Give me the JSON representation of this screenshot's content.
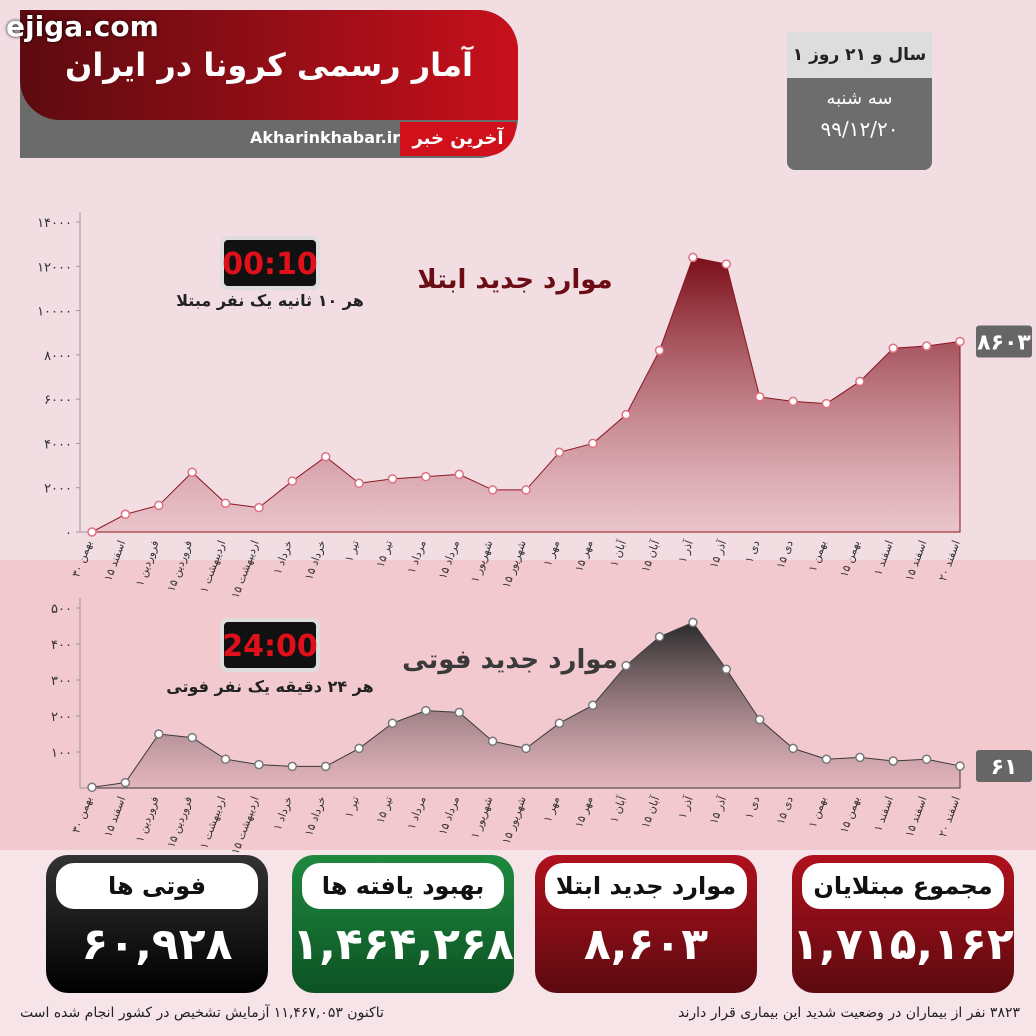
{
  "watermark": "ejiga.com",
  "header": {
    "title": "آمار رسمی کرونا در ایران",
    "site": "Akharinkhabar.ir",
    "logo": "آخرین خبر"
  },
  "date_box": {
    "duration": "۱ سال و ۲۱ روز",
    "weekday": "سه شنبه",
    "date": "۹۹/۱۲/۲۰"
  },
  "chart_data": [
    {
      "type": "area",
      "title": "موارد جدید ابتلا",
      "annotation": {
        "clock": "00:10",
        "text": "هر ۱۰ ثانیه یک نفر مبتلا"
      },
      "categories": [
        "۳۰ بهمن",
        "۱۵ اسفند",
        "۱ فروردین",
        "۱۵ فروردین",
        "۱ اردیبهشت",
        "۱۵ اردیبهشت",
        "۱ خرداد",
        "۱۵ خرداد",
        "۱ تیر",
        "۱۵ تیر",
        "۱ مرداد",
        "۱۵ مرداد",
        "۱ شهریور",
        "۱۵ شهریور",
        "۱ مهر",
        "۱۵ مهر",
        "۱ آبان",
        "۱۵ آبان",
        "۱ آذر",
        "۱۵ آذر",
        "۱ دی",
        "۱۵ دی",
        "۱ بهمن",
        "۱۵ بهمن",
        "۱ اسفند",
        "۱۵ اسفند",
        "۲۰ اسفند"
      ],
      "values": [
        0,
        800,
        1200,
        2700,
        1300,
        1100,
        2300,
        3400,
        2200,
        2400,
        2500,
        2600,
        1900,
        1900,
        3600,
        4000,
        5300,
        8200,
        12400,
        12100,
        6100,
        5900,
        5800,
        6800,
        8300,
        8400,
        8603
      ],
      "value_labels": [
        null,
        null,
        null,
        null,
        null,
        null,
        null,
        null,
        null,
        null,
        null,
        null,
        null,
        null,
        null,
        null,
        null,
        null,
        null,
        null,
        null,
        null,
        null,
        null,
        null,
        null,
        "۸۶۰۳"
      ],
      "color": "#8e1520",
      "ylim": [
        0,
        14000
      ],
      "yticks": [
        {
          "value": 0,
          "label": "۰"
        },
        {
          "value": 2000,
          "label": "۲۰۰۰"
        },
        {
          "value": 4000,
          "label": "۴۰۰۰"
        },
        {
          "value": 6000,
          "label": "۶۰۰۰"
        },
        {
          "value": 8000,
          "label": "۸۰۰۰"
        },
        {
          "value": 10000,
          "label": "۱۰۰۰۰"
        },
        {
          "value": 12000,
          "label": "۱۲۰۰۰"
        },
        {
          "value": 14000,
          "label": "۱۴۰۰۰"
        }
      ]
    },
    {
      "type": "area",
      "title": "موارد جدید فوتی",
      "annotation": {
        "clock": "24:00",
        "text": "هر ۲۴ دقیقه یک نفر فوتی"
      },
      "categories": [
        "۳۰ بهمن",
        "۱۵ اسفند",
        "۱ فروردین",
        "۱۵ فروردین",
        "۱ اردیبهشت",
        "۱۵ اردیبهشت",
        "۱ خرداد",
        "۱۵ خرداد",
        "۱ تیر",
        "۱۵ تیر",
        "۱ مرداد",
        "۱۵ مرداد",
        "۱ شهریور",
        "۱۵ شهریور",
        "۱ مهر",
        "۱۵ مهر",
        "۱ آبان",
        "۱۵ آبان",
        "۱ آذر",
        "۱۵ آذر",
        "۱ دی",
        "۱۵ دی",
        "۱ بهمن",
        "۱۵ بهمن",
        "۱ اسفند",
        "۱۵ اسفند",
        "۲۰ اسفند"
      ],
      "values": [
        2,
        15,
        150,
        140,
        80,
        65,
        60,
        60,
        110,
        180,
        215,
        210,
        130,
        110,
        180,
        230,
        340,
        420,
        460,
        330,
        190,
        110,
        80,
        85,
        75,
        80,
        61
      ],
      "value_labels": [
        null,
        null,
        null,
        null,
        null,
        null,
        null,
        null,
        null,
        null,
        null,
        null,
        null,
        null,
        null,
        null,
        null,
        null,
        null,
        null,
        null,
        null,
        null,
        null,
        null,
        null,
        "۶۱"
      ],
      "color": "#3a3a3a",
      "ylim": [
        0,
        500
      ],
      "yticks": [
        {
          "value": 100,
          "label": "۱۰۰"
        },
        {
          "value": 200,
          "label": "۲۰۰"
        },
        {
          "value": 300,
          "label": "۳۰۰"
        },
        {
          "value": 400,
          "label": "۴۰۰"
        },
        {
          "value": 500,
          "label": "۵۰۰"
        }
      ]
    }
  ],
  "cards": [
    {
      "label": "فوتی ها",
      "value": "۶۰,۹۲۸"
    },
    {
      "label": "بهبود یافته ها",
      "value": "۱,۴۶۴,۲۶۸"
    },
    {
      "label": "موارد جدید ابتلا",
      "value": "۸,۶۰۳"
    },
    {
      "label": "مجموع مبتلایان",
      "value": "۱,۷۱۵,۱۶۲"
    }
  ],
  "footer": {
    "severe": "۳۸۲۳ نفر از بیماران در وضعیت شدید این بیماری قرار دارند",
    "tests": "تاکنون ۱۱,۴۶۷,۰۵۳ آزمایش تشخیص در کشور انجام شده است"
  }
}
